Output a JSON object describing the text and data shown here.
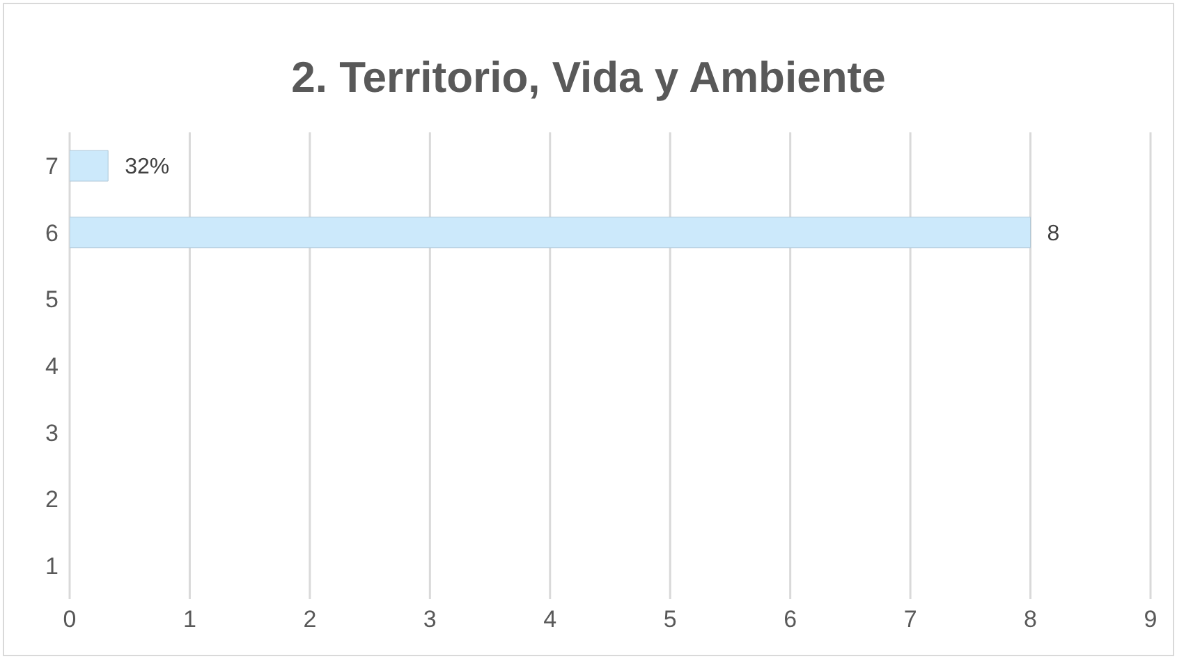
{
  "chart_data": {
    "type": "bar",
    "orientation": "horizontal",
    "title": "2. Territorio, Vida y Ambiente",
    "categories": [
      "7",
      "6",
      "5",
      "4",
      "3",
      "2",
      "1"
    ],
    "values": [
      0.32,
      8,
      null,
      null,
      null,
      null,
      null
    ],
    "value_labels": [
      "32%",
      "8",
      null,
      null,
      null,
      null,
      null
    ],
    "color": "#cce9fb",
    "xlim": [
      0,
      9
    ],
    "xticks": [
      0,
      1,
      2,
      3,
      4,
      5,
      6,
      7,
      8,
      9
    ],
    "grid": "x"
  }
}
